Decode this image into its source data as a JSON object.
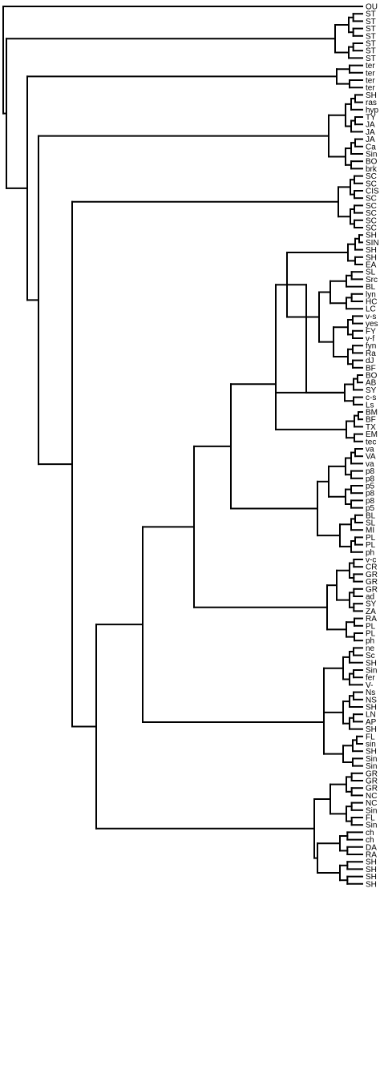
{
  "tree": {
    "leaf_labels": [
      "OU",
      "ST",
      "ST",
      "ST",
      "ST",
      "ST",
      "ST",
      "ST",
      "ter",
      "ter",
      "ter",
      "ter",
      "SH",
      "ras",
      "hyp",
      "TY",
      "JA",
      "JA",
      "JA",
      "Ca",
      "Sin",
      "BO",
      "brk",
      "SC",
      "SC",
      "CIS",
      "SC",
      "SC",
      "SC",
      "SC",
      "SC",
      "SH",
      "SIN",
      "SH",
      "SH",
      "EA",
      "SL",
      "Src",
      "BL",
      "lyn",
      "HC",
      "LC",
      "v-s",
      "yes",
      "FY",
      "v-f",
      "fyn",
      "Ra",
      "dJ",
      "BF",
      "BO",
      "AB",
      "SY",
      "c-s",
      "Ls",
      "BM",
      "BF",
      "TX",
      "EM",
      "tec",
      "va",
      "VA",
      "va",
      "p8",
      "p8",
      "p5",
      "p8",
      "p8",
      "p5",
      "BL",
      "SL",
      "MI",
      "PL",
      "PL",
      "ph",
      "v-c",
      "CR",
      "GR",
      "GR",
      "GR",
      "ad",
      "SY",
      "ZA",
      "RA",
      "PL",
      "PL",
      "ph",
      "ne",
      "Sc",
      "SH",
      "Sin",
      "fer",
      "V-",
      "Ns",
      "NS",
      "SH",
      "LN",
      "AP",
      "SH",
      "FL",
      "sin",
      "SH",
      "Sin",
      "Sin",
      "GR",
      "GR",
      "GR",
      "NC",
      "NC",
      "Sin",
      "FL",
      "Sin",
      "ch",
      "ch",
      "DA",
      "RA",
      "SH",
      "SH",
      "SH",
      "SH"
    ]
  }
}
